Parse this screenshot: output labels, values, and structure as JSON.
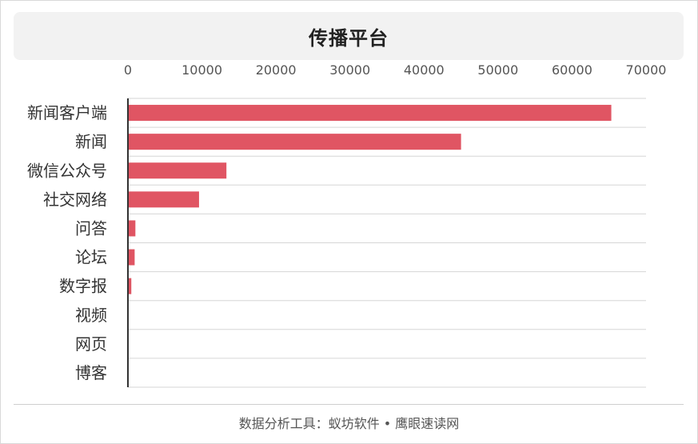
{
  "header": {
    "title": "传播平台"
  },
  "footer": {
    "text": "数据分析工具：蚁坊软件 • 鹰眼速读网"
  },
  "colors": {
    "bar": "#e05563",
    "grid": "#d6d6d6",
    "axis": "#333333"
  },
  "chart_data": {
    "type": "bar",
    "orientation": "horizontal",
    "title": "传播平台",
    "xlabel": "",
    "ylabel": "",
    "xlim": [
      0,
      70000
    ],
    "ticks": [
      0,
      10000,
      20000,
      30000,
      40000,
      50000,
      60000,
      70000
    ],
    "grid": true,
    "categories": [
      "新闻客户端",
      "新闻",
      "微信公众号",
      "社交网络",
      "问答",
      "论坛",
      "数字报",
      "视频",
      "网页",
      "博客"
    ],
    "values": [
      65200,
      44900,
      13200,
      9500,
      900,
      800,
      350,
      0,
      0,
      0
    ]
  }
}
